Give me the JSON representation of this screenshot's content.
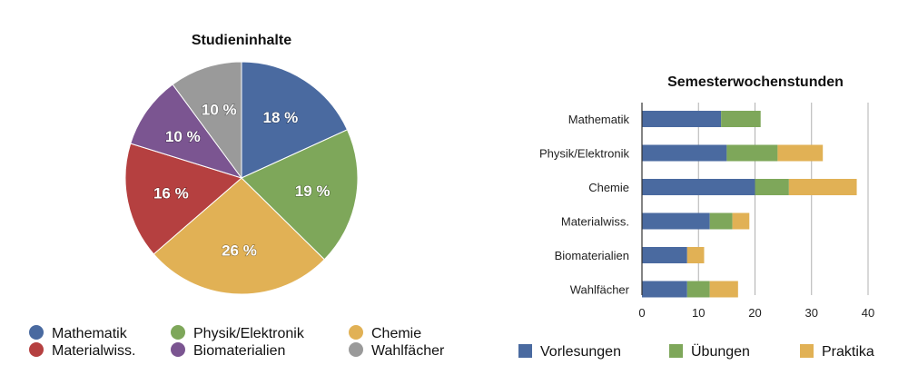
{
  "chart_data": [
    {
      "type": "pie",
      "title": "Studieninhalte",
      "slices": [
        {
          "name": "Mathematik",
          "value": 18,
          "label": "18 %",
          "color": "#4a6aa0"
        },
        {
          "name": "Physik/Elektronik",
          "value": 19,
          "label": "19 %",
          "color": "#7ea75a"
        },
        {
          "name": "Chemie",
          "value": 26,
          "label": "26 %",
          "color": "#e1b155"
        },
        {
          "name": "Materialwiss.",
          "value": 16,
          "label": "16 %",
          "color": "#b54040"
        },
        {
          "name": "Biomaterialien",
          "value": 10,
          "label": "10 %",
          "color": "#7b5591"
        },
        {
          "name": "Wahlfächer",
          "value": 10,
          "label": "10 %",
          "color": "#9a9a9a"
        }
      ],
      "legend": [
        {
          "name": "Mathematik",
          "color": "#4a6aa0"
        },
        {
          "name": "Physik/Elektronik",
          "color": "#7ea75a"
        },
        {
          "name": "Chemie",
          "color": "#e1b155"
        },
        {
          "name": "Materialwiss.",
          "color": "#b54040"
        },
        {
          "name": "Biomaterialien",
          "color": "#7b5591"
        },
        {
          "name": "Wahlfächer",
          "color": "#9a9a9a"
        }
      ],
      "legend_position": "bottom"
    },
    {
      "type": "bar",
      "orientation": "horizontal",
      "stacked": true,
      "title": "Semesterwochenstunden",
      "categories": [
        "Mathematik",
        "Physik/Elektronik",
        "Chemie",
        "Materialwiss.",
        "Biomaterialien",
        "Wahlfächer"
      ],
      "series": [
        {
          "name": "Vorlesungen",
          "color": "#4a6aa0",
          "values": [
            14,
            15,
            20,
            12,
            8,
            8
          ]
        },
        {
          "name": "Übungen",
          "color": "#7ea75a",
          "values": [
            7,
            9,
            6,
            4,
            0,
            4
          ]
        },
        {
          "name": "Praktika",
          "color": "#e1b155",
          "values": [
            0,
            8,
            12,
            3,
            3,
            5
          ]
        }
      ],
      "xlim": [
        0,
        40
      ],
      "xticks": [
        "0",
        "10",
        "20",
        "30",
        "40"
      ],
      "grid": true,
      "legend_position": "bottom"
    }
  ]
}
